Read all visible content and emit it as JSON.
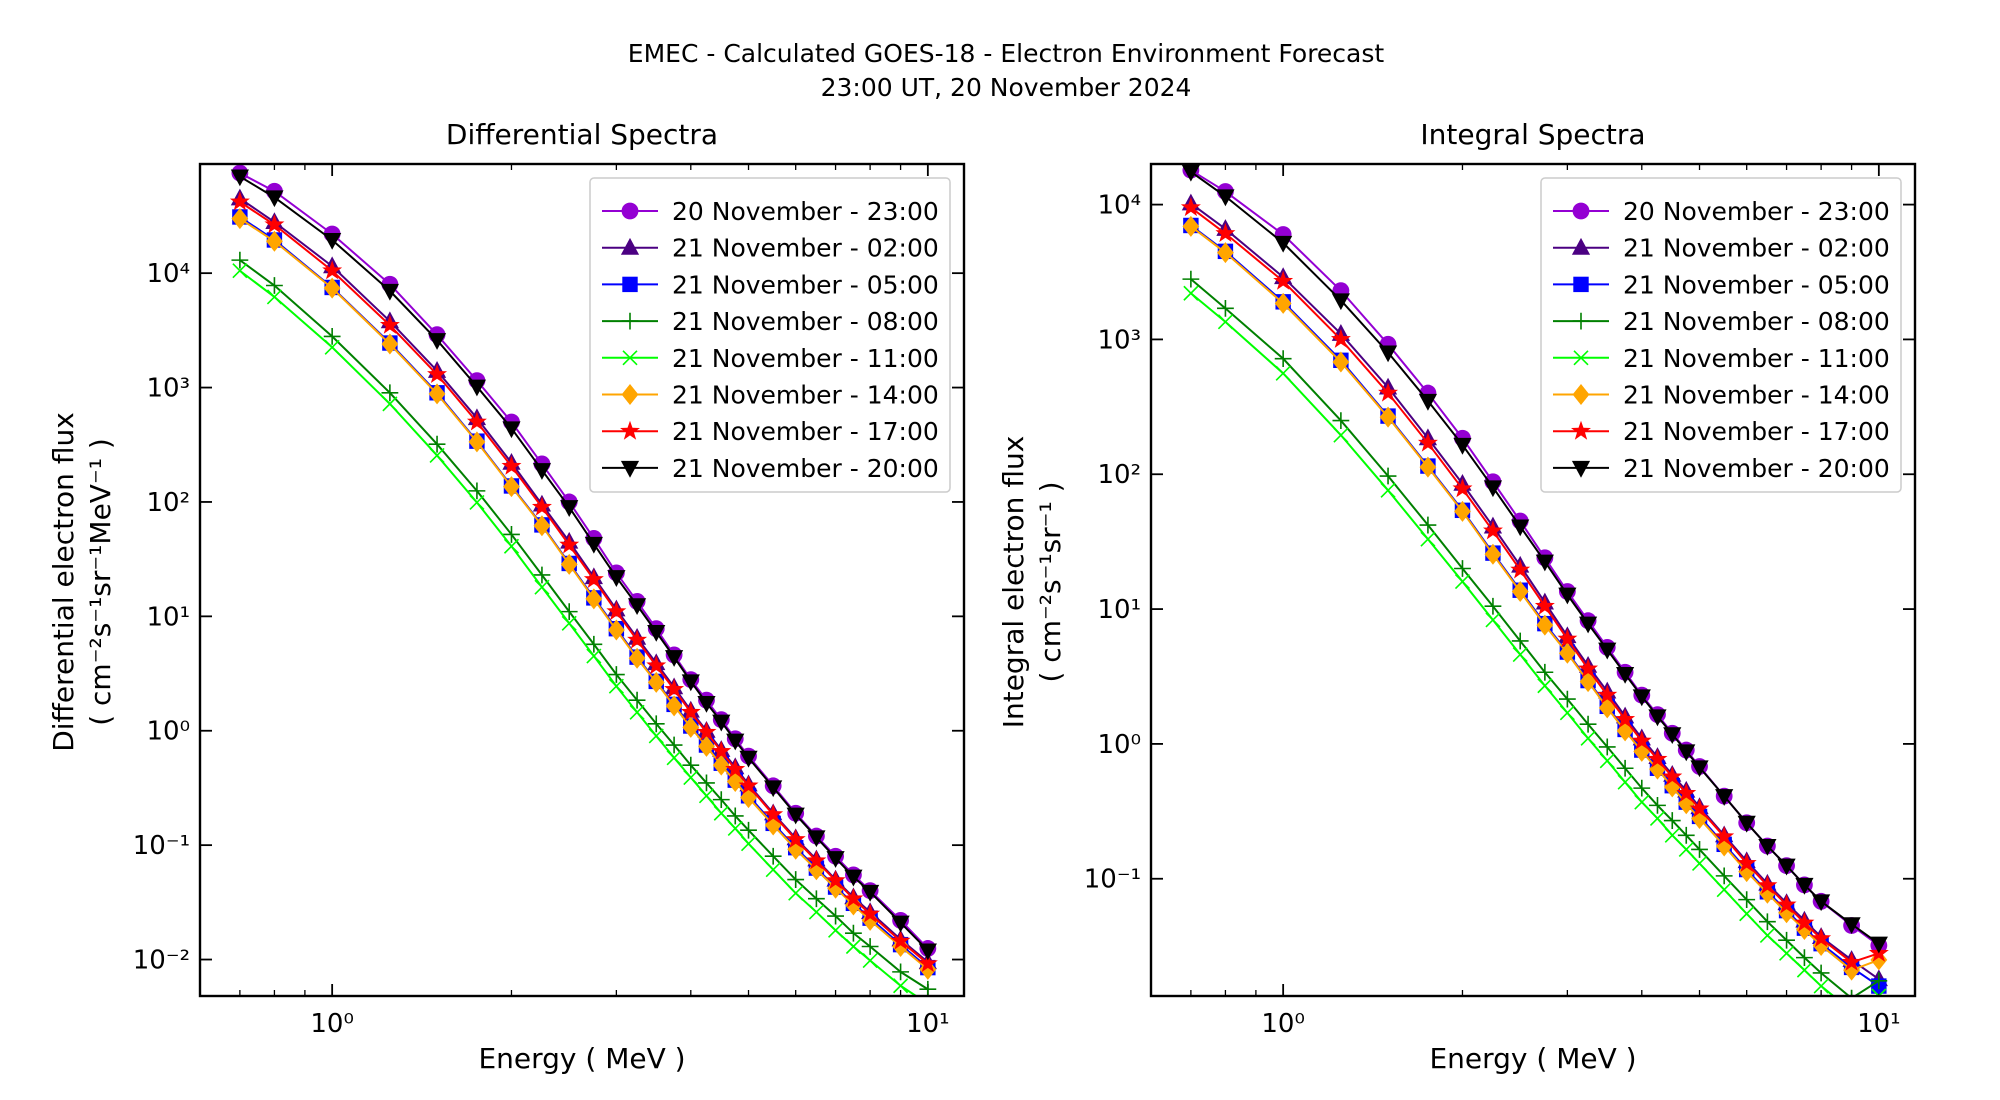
{
  "figure": {
    "title_line1": "EMEC - Calculated GOES-18 - Electron Environment Forecast",
    "title_line2": "23:00 UT, 20 November 2024"
  },
  "chart_data": [
    {
      "type": "line",
      "title": "Differential Spectra",
      "xlabel": "Energy ( MeV )",
      "ylabel_line1": "Differential electron flux",
      "ylabel_line2": "( cm⁻²s⁻¹sr⁻¹MeV⁻¹ )",
      "x_scale": "log",
      "y_scale": "log",
      "xlim": [
        0.6,
        11.5
      ],
      "ylim": [
        0.0048,
        90000
      ],
      "x_ticks": [
        {
          "value": 1,
          "label": "10⁰"
        },
        {
          "value": 10,
          "label": "10¹"
        }
      ],
      "y_ticks": [
        {
          "value": 0.01,
          "label": "10⁻²"
        },
        {
          "value": 0.1,
          "label": "10⁻¹"
        },
        {
          "value": 1,
          "label": "10⁰"
        },
        {
          "value": 10,
          "label": "10¹"
        },
        {
          "value": 100,
          "label": "10²"
        },
        {
          "value": 1000,
          "label": "10³"
        },
        {
          "value": 10000,
          "label": "10⁴"
        }
      ],
      "grid": false,
      "legend_position": "top-right",
      "x": [
        0.7,
        0.8,
        1.0,
        1.25,
        1.5,
        1.75,
        2.0,
        2.25,
        2.5,
        2.75,
        3.0,
        3.25,
        3.5,
        3.75,
        4.0,
        4.25,
        4.5,
        4.75,
        5.0,
        5.5,
        6.0,
        6.5,
        7.0,
        7.5,
        8.0,
        9.0,
        10.0
      ],
      "series": [
        {
          "name": "20 November - 23:00",
          "color": "#9400d3",
          "marker": "circle",
          "values": [
            75000,
            52000,
            22000,
            8000,
            2900,
            1150,
            500,
            215,
            100,
            48,
            24,
            13.5,
            7.8,
            4.6,
            2.8,
            1.85,
            1.25,
            0.85,
            0.6,
            0.33,
            0.19,
            0.12,
            0.08,
            0.055,
            0.04,
            0.022,
            0.0125
          ]
        },
        {
          "name": "21 November - 02:00",
          "color": "#4b0082",
          "marker": "triangle-up",
          "values": [
            45000,
            28000,
            11500,
            3800,
            1400,
            540,
            220,
            95,
            45,
            22,
            11.5,
            6.5,
            3.9,
            2.4,
            1.5,
            1.0,
            0.68,
            0.48,
            0.34,
            0.19,
            0.115,
            0.075,
            0.05,
            0.035,
            0.026,
            0.015,
            0.0095
          ]
        },
        {
          "name": "21 November - 05:00",
          "color": "#0000ff",
          "marker": "square",
          "values": [
            31000,
            19500,
            7500,
            2450,
            900,
            340,
            138,
            63,
            29,
            14.5,
            7.8,
            4.4,
            2.7,
            1.7,
            1.1,
            0.75,
            0.52,
            0.37,
            0.27,
            0.155,
            0.095,
            0.063,
            0.043,
            0.031,
            0.023,
            0.0135,
            0.0085
          ]
        },
        {
          "name": "21 November - 08:00",
          "color": "#008000",
          "marker": "plus",
          "values": [
            13000,
            7800,
            2800,
            900,
            320,
            125,
            52,
            23,
            11,
            5.7,
            3.1,
            1.85,
            1.15,
            0.75,
            0.5,
            0.35,
            0.25,
            0.18,
            0.135,
            0.08,
            0.05,
            0.034,
            0.024,
            0.017,
            0.013,
            0.0078,
            0.0055
          ]
        },
        {
          "name": "21 November - 11:00",
          "color": "#00ff00",
          "marker": "x",
          "values": [
            10500,
            6200,
            2250,
            720,
            255,
            99,
            41,
            18,
            8.7,
            4.5,
            2.45,
            1.45,
            0.9,
            0.58,
            0.39,
            0.27,
            0.19,
            0.14,
            0.103,
            0.061,
            0.038,
            0.026,
            0.018,
            0.013,
            0.0098,
            0.0059,
            0.0041
          ]
        },
        {
          "name": "21 November - 14:00",
          "color": "#ffa500",
          "marker": "diamond",
          "values": [
            30000,
            19000,
            7400,
            2400,
            880,
            335,
            136,
            62,
            28.5,
            14.2,
            7.6,
            4.3,
            2.65,
            1.65,
            1.07,
            0.73,
            0.5,
            0.36,
            0.26,
            0.15,
            0.092,
            0.061,
            0.042,
            0.03,
            0.022,
            0.013,
            0.0082
          ]
        },
        {
          "name": "21 November - 17:00",
          "color": "#ff0000",
          "marker": "star",
          "values": [
            42000,
            26500,
            10500,
            3500,
            1300,
            500,
            205,
            90,
            42,
            21,
            11,
            6.2,
            3.7,
            2.3,
            1.45,
            0.97,
            0.66,
            0.46,
            0.33,
            0.185,
            0.112,
            0.073,
            0.049,
            0.034,
            0.025,
            0.0145,
            0.0092
          ]
        },
        {
          "name": "21 November - 20:00",
          "color": "#000000",
          "marker": "triangle-down",
          "values": [
            70000,
            46000,
            19500,
            7000,
            2600,
            1020,
            440,
            190,
            90,
            43,
            22,
            12.5,
            7.3,
            4.4,
            2.7,
            1.75,
            1.2,
            0.82,
            0.58,
            0.32,
            0.185,
            0.117,
            0.077,
            0.053,
            0.039,
            0.021,
            0.012
          ]
        }
      ]
    },
    {
      "type": "line",
      "title": "Integral Spectra",
      "xlabel": "Energy ( MeV )",
      "ylabel_line1": "Integral electron flux",
      "ylabel_line2": "( cm⁻²s⁻¹sr⁻¹ )",
      "x_scale": "log",
      "y_scale": "log",
      "xlim": [
        0.6,
        11.5
      ],
      "ylim": [
        0.0135,
        20000
      ],
      "x_ticks": [
        {
          "value": 1,
          "label": "10⁰"
        },
        {
          "value": 10,
          "label": "10¹"
        }
      ],
      "y_ticks": [
        {
          "value": 0.1,
          "label": "10⁻¹"
        },
        {
          "value": 1,
          "label": "10⁰"
        },
        {
          "value": 10,
          "label": "10¹"
        },
        {
          "value": 100,
          "label": "10²"
        },
        {
          "value": 1000,
          "label": "10³"
        },
        {
          "value": 10000,
          "label": "10⁴"
        }
      ],
      "grid": false,
      "legend_position": "top-right",
      "x": [
        0.7,
        0.8,
        1.0,
        1.25,
        1.5,
        1.75,
        2.0,
        2.25,
        2.5,
        2.75,
        3.0,
        3.25,
        3.5,
        3.75,
        4.0,
        4.25,
        4.5,
        4.75,
        5.0,
        5.5,
        6.0,
        6.5,
        7.0,
        7.5,
        8.0,
        9.0,
        10.0
      ],
      "series": [
        {
          "name": "20 November - 23:00",
          "color": "#9400d3",
          "marker": "circle",
          "values": [
            18000,
            12500,
            6000,
            2300,
            920,
            400,
            185,
            88,
            45,
            24,
            13.5,
            8.2,
            5.2,
            3.4,
            2.3,
            1.65,
            1.2,
            0.9,
            0.68,
            0.41,
            0.26,
            0.175,
            0.125,
            0.09,
            0.068,
            0.045,
            0.032
          ]
        },
        {
          "name": "21 November - 02:00",
          "color": "#4b0082",
          "marker": "triangle-up",
          "values": [
            10200,
            6600,
            2900,
            1100,
            440,
            185,
            85,
            41,
            21,
            11.2,
            6.3,
            3.8,
            2.45,
            1.6,
            1.1,
            0.8,
            0.59,
            0.45,
            0.34,
            0.21,
            0.135,
            0.092,
            0.066,
            0.049,
            0.037,
            0.025,
            0.018
          ]
        },
        {
          "name": "21 November - 05:00",
          "color": "#0000ff",
          "marker": "square",
          "values": [
            7000,
            4500,
            1900,
            700,
            270,
            115,
            54,
            26,
            13.8,
            7.8,
            4.8,
            2.95,
            1.9,
            1.28,
            0.9,
            0.66,
            0.49,
            0.37,
            0.29,
            0.18,
            0.117,
            0.08,
            0.058,
            0.043,
            0.033,
            0.022,
            0.016
          ]
        },
        {
          "name": "21 November - 08:00",
          "color": "#008000",
          "marker": "plus",
          "values": [
            2800,
            1700,
            720,
            250,
            97,
            42,
            20,
            10.5,
            5.8,
            3.4,
            2.15,
            1.4,
            0.95,
            0.66,
            0.47,
            0.35,
            0.27,
            0.21,
            0.165,
            0.105,
            0.07,
            0.048,
            0.035,
            0.026,
            0.02,
            0.013,
            0.0175
          ]
        },
        {
          "name": "21 November - 11:00",
          "color": "#00ff00",
          "marker": "x",
          "values": [
            2200,
            1350,
            560,
            195,
            76,
            33,
            16,
            8.3,
            4.6,
            2.7,
            1.7,
            1.1,
            0.75,
            0.52,
            0.37,
            0.28,
            0.21,
            0.165,
            0.13,
            0.083,
            0.055,
            0.038,
            0.028,
            0.021,
            0.016,
            0.0105,
            0.0135
          ]
        },
        {
          "name": "21 November - 14:00",
          "color": "#ffa500",
          "marker": "diamond",
          "values": [
            6900,
            4400,
            1850,
            680,
            265,
            113,
            53,
            25.5,
            13.5,
            7.6,
            4.7,
            2.9,
            1.85,
            1.25,
            0.88,
            0.65,
            0.48,
            0.36,
            0.28,
            0.175,
            0.113,
            0.078,
            0.056,
            0.042,
            0.032,
            0.021,
            0.025
          ]
        },
        {
          "name": "21 November - 17:00",
          "color": "#ff0000",
          "marker": "star",
          "values": [
            9500,
            6100,
            2700,
            1000,
            400,
            170,
            78,
            38,
            19.5,
            10.5,
            6,
            3.6,
            2.3,
            1.52,
            1.05,
            0.77,
            0.57,
            0.43,
            0.33,
            0.205,
            0.13,
            0.089,
            0.064,
            0.047,
            0.036,
            0.024,
            0.028
          ]
        },
        {
          "name": "21 November - 20:00",
          "color": "#000000",
          "marker": "triangle-down",
          "values": [
            17500,
            11500,
            5200,
            1950,
            800,
            350,
            165,
            80,
            41,
            22.5,
            12.8,
            7.8,
            5,
            3.3,
            2.25,
            1.6,
            1.18,
            0.88,
            0.67,
            0.41,
            0.26,
            0.175,
            0.125,
            0.09,
            0.068,
            0.046,
            0.033
          ]
        }
      ]
    }
  ]
}
